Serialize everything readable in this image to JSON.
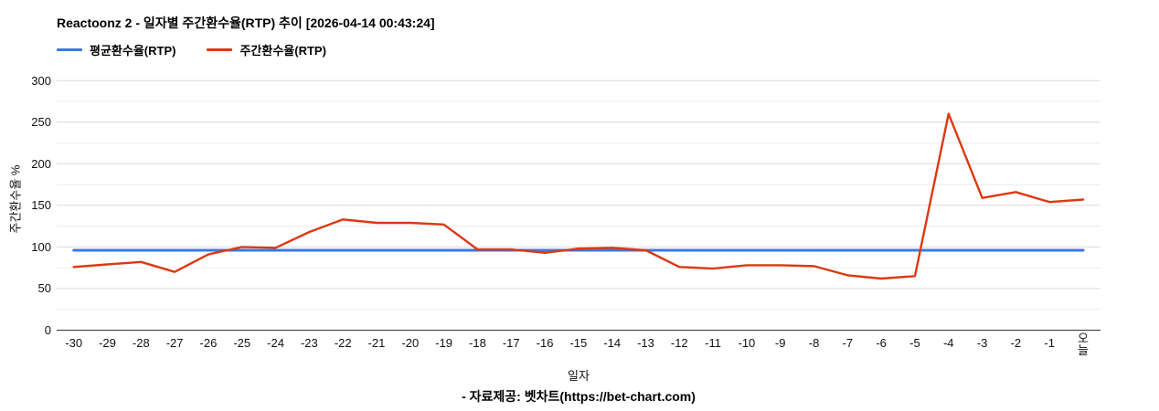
{
  "title": "Reactoonz 2 - 일자별 주간환수율(RTP) 추이 [2026-04-14 00:43:24]",
  "legend": [
    {
      "label": "평균환수율(RTP)",
      "color": "#3d79e0"
    },
    {
      "label": "주간환수율(RTP)",
      "color": "#dc3912"
    }
  ],
  "footer": {
    "source": "- 자료제공: 벳차트(https://bet-chart.com)"
  },
  "chart_data": {
    "type": "line",
    "title": "Reactoonz 2 - 일자별 주간환수율(RTP) 추이 [2026-04-14 00:43:24]",
    "xlabel": "일자",
    "ylabel": "주간환수율 %",
    "ylim": [
      0,
      300
    ],
    "yticks": [
      0,
      50,
      100,
      150,
      200,
      250,
      300
    ],
    "grid_minor_step": 25,
    "grid": true,
    "legend_position": "top",
    "categories": [
      "-30",
      "-29",
      "-28",
      "-27",
      "-26",
      "-25",
      "-24",
      "-23",
      "-22",
      "-21",
      "-20",
      "-19",
      "-18",
      "-17",
      "-16",
      "-15",
      "-14",
      "-13",
      "-12",
      "-11",
      "-10",
      "-9",
      "-8",
      "-7",
      "-6",
      "-5",
      "-4",
      "-3",
      "-2",
      "-1",
      "오늘"
    ],
    "series": [
      {
        "name": "평균환수율(RTP)",
        "color": "#3d79e0",
        "stroke_width": 3,
        "constant": 96
      },
      {
        "name": "주간환수율(RTP)",
        "color": "#dc3912",
        "stroke_width": 2.4,
        "values": [
          76,
          79,
          82,
          70,
          91,
          100,
          99,
          118,
          133,
          129,
          129,
          127,
          97,
          97,
          93,
          98,
          99,
          96,
          76,
          74,
          78,
          78,
          77,
          66,
          62,
          65,
          260,
          159,
          166,
          154,
          157
        ]
      }
    ],
    "grid_colors": {
      "minor": "#ececec",
      "major": "#d9d9d9",
      "baseline": "#333333"
    }
  }
}
